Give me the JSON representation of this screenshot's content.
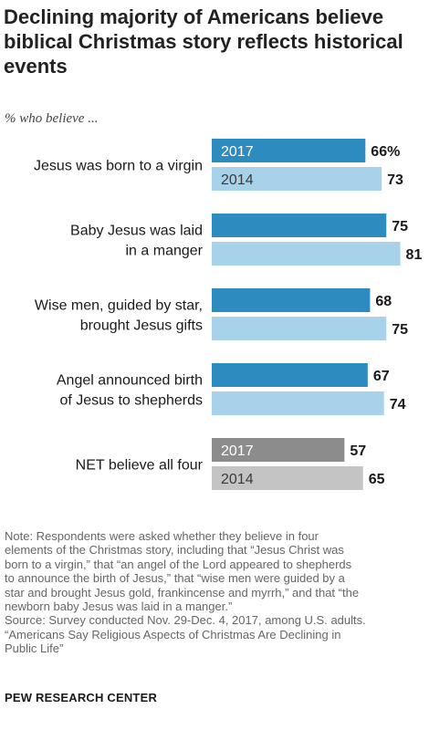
{
  "title": "Declining majority of Americans believe biblical Christmas story reflects historical events",
  "subtitle": "% who believe ...",
  "colors": {
    "dark_blue": "#2e8bc0",
    "light_blue": "#a8d2ea",
    "dark_gray": "#8c8c8c",
    "light_gray": "#c4c4c4",
    "label_text": "#1a1a1a",
    "inbar_text": "#ffffff",
    "inbar_text_light": "#3a3a3a"
  },
  "chart_data": {
    "type": "bar",
    "orientation": "horizontal",
    "title": "Declining majority of Americans believe biblical Christmas story reflects historical events",
    "subtitle": "% who believe ...",
    "series_names": [
      "2017",
      "2014"
    ],
    "xlim": [
      0,
      100
    ],
    "grid": false,
    "legend": "in-bar labels on first and last groups",
    "groups": [
      {
        "label": [
          "Jesus was born to a virgin"
        ],
        "values": [
          66,
          73
        ],
        "value_labels": [
          "66%",
          "73"
        ],
        "series_labels": [
          "2017",
          "2014"
        ],
        "style": "blue"
      },
      {
        "label": [
          "Baby Jesus was laid",
          "in a manger"
        ],
        "values": [
          75,
          81
        ],
        "value_labels": [
          "75",
          "81"
        ],
        "series_labels": [
          "",
          ""
        ],
        "style": "blue"
      },
      {
        "label": [
          "Wise men, guided by star,",
          "brought Jesus gifts"
        ],
        "values": [
          68,
          75
        ],
        "value_labels": [
          "68",
          "75"
        ],
        "series_labels": [
          "",
          ""
        ],
        "style": "blue"
      },
      {
        "label": [
          "Angel announced birth",
          "of Jesus to shepherds"
        ],
        "values": [
          67,
          74
        ],
        "value_labels": [
          "67",
          "74"
        ],
        "series_labels": [
          "",
          ""
        ],
        "style": "blue"
      },
      {
        "label": [
          "NET believe all four"
        ],
        "values": [
          57,
          65
        ],
        "value_labels": [
          "57",
          "65"
        ],
        "series_labels": [
          "2017",
          "2014"
        ],
        "style": "gray"
      }
    ]
  },
  "note_lines": [
    "Note: Respondents were asked whether they believe in four",
    "elements of the Christmas story, including that “Jesus Christ was",
    "born to a virgin,” that “an angel of the Lord appeared to shepherds",
    "to announce the birth of Jesus,” that “wise men were guided by a",
    "star and brought Jesus gold, frankincense and myrrh,” and that “the",
    "newborn baby Jesus was laid in a manger.”",
    "Source: Survey conducted Nov. 29-Dec. 4, 2017, among U.S. adults.",
    "“Americans Say Religious Aspects of Christmas Are Declining in",
    "Public Life”"
  ],
  "footer": "PEW RESEARCH CENTER"
}
